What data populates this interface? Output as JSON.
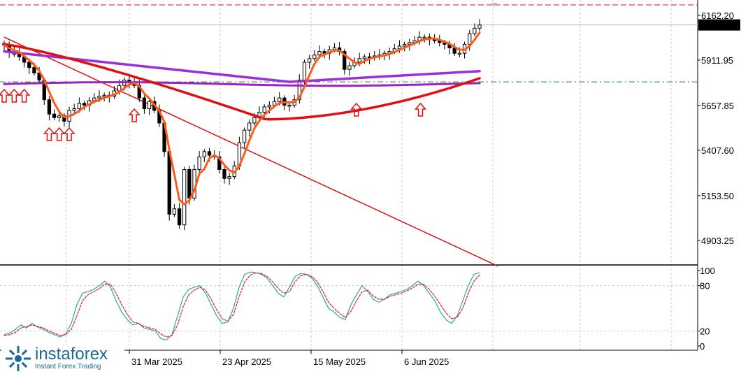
{
  "chart_data": [
    {
      "type": "candlestick",
      "title": "",
      "y_ticks": [
        6162.2,
        5911.95,
        5657.85,
        5407.6,
        5153.5,
        4903.25
      ],
      "y_range": [
        4770,
        6240
      ],
      "current_price": 6108.41,
      "current_price_label": "6108.41",
      "horizontal_level": 5790,
      "x_ticks": [
        "31 Mar 2025",
        "23 Apr 2025",
        "15 May 2025",
        "6 Jun 2025"
      ],
      "series_close_approx": [
        5995,
        5960,
        5945,
        5930,
        5900,
        5870,
        5840,
        5800,
        5690,
        5610,
        5590,
        5600,
        5570,
        5630,
        5640,
        5670,
        5660,
        5685,
        5700,
        5710,
        5715,
        5710,
        5740,
        5770,
        5800,
        5790,
        5770,
        5700,
        5640,
        5680,
        5630,
        5560,
        5400,
        5050,
        5080,
        4990,
        5300,
        5140,
        5300,
        5370,
        5400,
        5380,
        5370,
        5300,
        5250,
        5260,
        5320,
        5450,
        5520,
        5560,
        5590,
        5620,
        5650,
        5660,
        5680,
        5700,
        5660,
        5660,
        5690,
        5800,
        5900,
        5920,
        5940,
        5960,
        5950,
        5970,
        5980,
        5960,
        5860,
        5880,
        5900,
        5920,
        5930,
        5925,
        5935,
        5940,
        5950,
        5960,
        5975,
        5990,
        6000,
        6010,
        6020,
        6040,
        6040,
        6030,
        6020,
        6010,
        6000,
        5980,
        5950,
        5950,
        6000,
        6060,
        6090,
        6108
      ],
      "moving_averages": [
        {
          "color": "#ff5a1a",
          "description": "fast MA"
        },
        {
          "color": "#e01010",
          "description": "slow MA"
        },
        {
          "color": "#9b30d8",
          "description": "medium MA"
        },
        {
          "color": "#a020c8",
          "description": "long MA"
        }
      ],
      "trendline": {
        "color": "#e01010",
        "from": [
          0,
          6040
        ],
        "to": [
          100,
          4760
        ]
      },
      "arrows": {
        "color": "#e01010",
        "count": 9
      }
    },
    {
      "type": "line",
      "subtype": "stochastic oscillator",
      "y_ticks": [
        100,
        80,
        20,
        0
      ],
      "series": [
        {
          "color": "#2aa6a6",
          "values": [
            15,
            17,
            22,
            28,
            24,
            30,
            25,
            22,
            18,
            15,
            12,
            16,
            30,
            55,
            70,
            72,
            75,
            80,
            86,
            78,
            60,
            45,
            35,
            28,
            30,
            24,
            22,
            20,
            10,
            8,
            15,
            40,
            65,
            75,
            78,
            80,
            70,
            55,
            40,
            30,
            32,
            50,
            78,
            95,
            98,
            97,
            95,
            90,
            80,
            70,
            65,
            78,
            92,
            96,
            95,
            90,
            80,
            65,
            50,
            45,
            38,
            35,
            55,
            68,
            80,
            72,
            62,
            58,
            62,
            68,
            70,
            72,
            75,
            80,
            86,
            80,
            70,
            60,
            45,
            35,
            30,
            40,
            60,
            80,
            95,
            97
          ]
        },
        {
          "color": "#e02020",
          "values": [
            14,
            15,
            18,
            24,
            26,
            28,
            26,
            24,
            20,
            17,
            14,
            15,
            22,
            40,
            60,
            68,
            72,
            76,
            82,
            82,
            70,
            55,
            42,
            32,
            30,
            26,
            24,
            22,
            16,
            12,
            14,
            28,
            52,
            68,
            74,
            78,
            74,
            62,
            48,
            36,
            33,
            42,
            65,
            85,
            94,
            97,
            96,
            92,
            85,
            76,
            70,
            72,
            85,
            93,
            95,
            92,
            85,
            72,
            58,
            50,
            43,
            38,
            46,
            60,
            72,
            74,
            66,
            62,
            62,
            66,
            68,
            70,
            73,
            77,
            82,
            82,
            75,
            66,
            55,
            44,
            36,
            38,
            50,
            70,
            86,
            94
          ]
        }
      ]
    }
  ],
  "branding": {
    "logo_name": "instaforex",
    "tagline": "Instant Forex Trading"
  }
}
